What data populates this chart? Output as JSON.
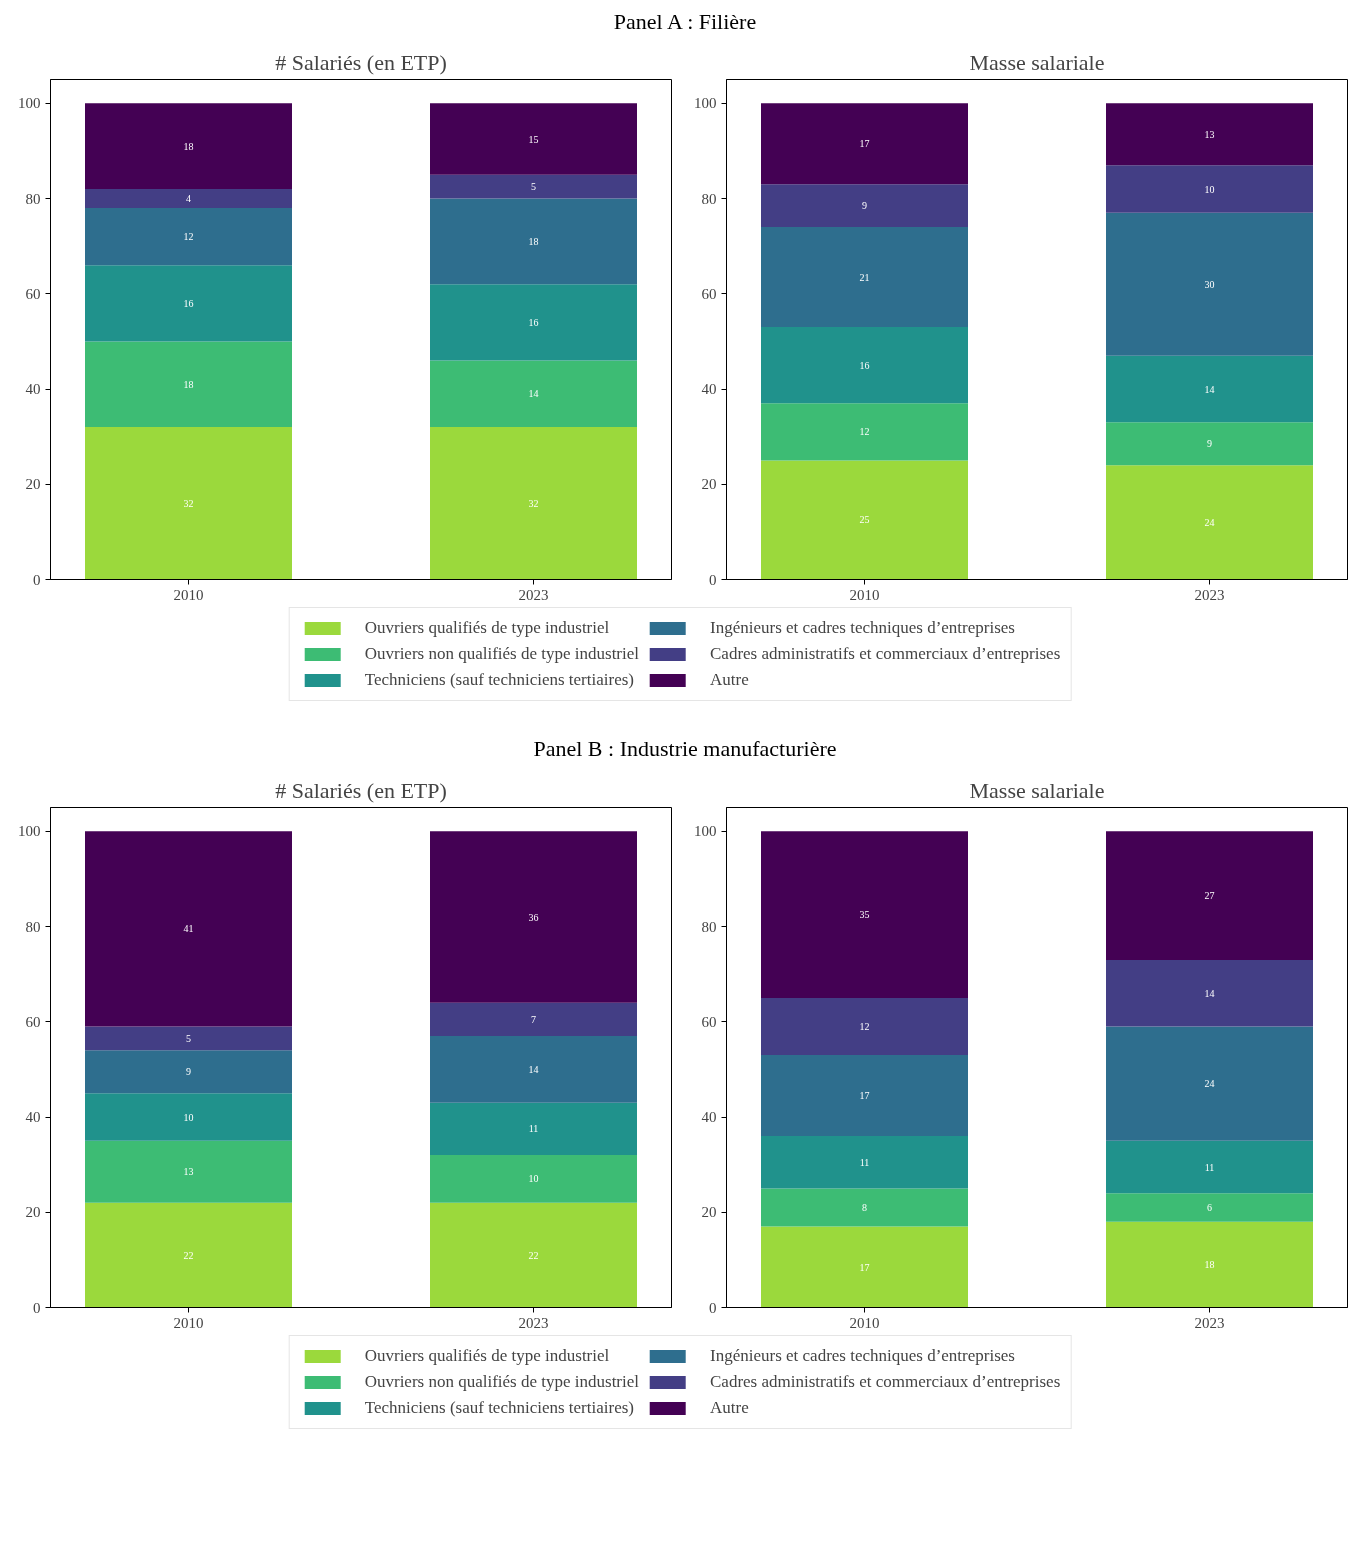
{
  "chart_data": [
    {
      "type": "bar",
      "title": "# Salariés (en ETP)",
      "annotations": [
        "Panel A : Filière"
      ],
      "categories": [
        "2010",
        "2023"
      ],
      "stacked": true,
      "data_labels": true,
      "legend": "bottom",
      "grid": false,
      "ylim": [
        0,
        105
      ],
      "yticks": [
        0,
        20,
        40,
        60,
        80,
        100
      ],
      "series": [
        {
          "name": "Ouvriers qualifiés de type industriel",
          "color": "#9bd93c",
          "values": [
            32,
            32
          ]
        },
        {
          "name": "Ouvriers non qualifiés de type industriel",
          "color": "#3dbc74",
          "values": [
            18,
            14
          ]
        },
        {
          "name": "Techniciens (sauf techniciens tertiaires)",
          "color": "#20928c",
          "values": [
            16,
            16
          ]
        },
        {
          "name": "Ingénieurs et cadres techniques d’entreprises",
          "color": "#2e6e8e",
          "values": [
            12,
            18
          ]
        },
        {
          "name": "Cadres administratifs et commerciaux d’entreprises",
          "color": "#433e85",
          "values": [
            4,
            5
          ]
        },
        {
          "name": "Autre",
          "color": "#440154",
          "values": [
            18,
            15
          ]
        }
      ]
    },
    {
      "type": "bar",
      "title": "Masse salariale",
      "categories": [
        "2010",
        "2023"
      ],
      "stacked": true,
      "data_labels": true,
      "grid": false,
      "ylim": [
        0,
        105
      ],
      "yticks": [
        0,
        20,
        40,
        60,
        80,
        100
      ],
      "series": [
        {
          "color": "#9bd93c",
          "values": [
            25,
            24
          ]
        },
        {
          "color": "#3dbc74",
          "values": [
            12,
            9
          ]
        },
        {
          "color": "#20928c",
          "values": [
            16,
            14
          ]
        },
        {
          "color": "#2e6e8e",
          "values": [
            21,
            30
          ]
        },
        {
          "color": "#433e85",
          "values": [
            9,
            10
          ]
        },
        {
          "color": "#440154",
          "values": [
            17,
            13
          ]
        }
      ]
    },
    {
      "type": "bar",
      "title": "# Salariés (en ETP)",
      "annotations": [
        "Panel B : Industrie manufacturière"
      ],
      "categories": [
        "2010",
        "2023"
      ],
      "stacked": true,
      "data_labels": true,
      "legend": "bottom",
      "grid": false,
      "ylim": [
        0,
        105
      ],
      "yticks": [
        0,
        20,
        40,
        60,
        80,
        100
      ],
      "series": [
        {
          "name": "Ouvriers qualifiés de type industriel",
          "color": "#9bd93c",
          "values": [
            22,
            22
          ]
        },
        {
          "name": "Ouvriers non qualifiés de type industriel",
          "color": "#3dbc74",
          "values": [
            13,
            10
          ]
        },
        {
          "name": "Techniciens (sauf techniciens tertiaires)",
          "color": "#20928c",
          "values": [
            10,
            11
          ]
        },
        {
          "name": "Ingénieurs et cadres techniques d’entreprises",
          "color": "#2e6e8e",
          "values": [
            9,
            14
          ]
        },
        {
          "name": "Cadres administratifs et commerciaux d’entreprises",
          "color": "#433e85",
          "values": [
            5,
            7
          ]
        },
        {
          "name": "Autre",
          "color": "#440154",
          "values": [
            41,
            36
          ]
        }
      ]
    },
    {
      "type": "bar",
      "title": "Masse salariale",
      "categories": [
        "2010",
        "2023"
      ],
      "stacked": true,
      "data_labels": true,
      "grid": false,
      "ylim": [
        0,
        105
      ],
      "yticks": [
        0,
        20,
        40,
        60,
        80,
        100
      ],
      "series": [
        {
          "color": "#9bd93c",
          "values": [
            17,
            18
          ]
        },
        {
          "color": "#3dbc74",
          "values": [
            8,
            6
          ]
        },
        {
          "color": "#20928c",
          "values": [
            11,
            11
          ]
        },
        {
          "color": "#2e6e8e",
          "values": [
            17,
            24
          ]
        },
        {
          "color": "#433e85",
          "values": [
            12,
            14
          ]
        },
        {
          "color": "#440154",
          "values": [
            35,
            27
          ]
        }
      ]
    }
  ]
}
